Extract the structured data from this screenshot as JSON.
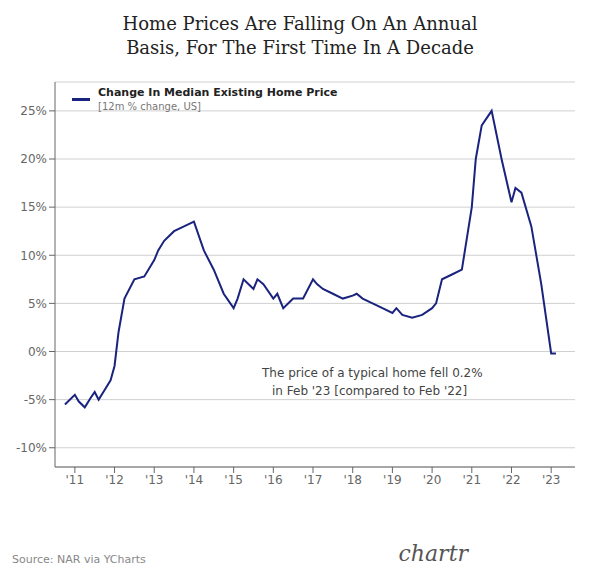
{
  "chart_data": {
    "type": "line",
    "title": "Home Prices Are Falling On An Annual\nBasis, For The First Time In A Decade",
    "subtitle": "[12m % change, US]",
    "x": [
      2010.75,
      2011.0,
      2011.1,
      2011.25,
      2011.4,
      2011.5,
      2011.6,
      2011.75,
      2011.9,
      2012.0,
      2012.1,
      2012.25,
      2012.5,
      2012.75,
      2013.0,
      2013.1,
      2013.25,
      2013.5,
      2013.75,
      2014.0,
      2014.25,
      2014.5,
      2014.75,
      2015.0,
      2015.1,
      2015.25,
      2015.5,
      2015.6,
      2015.75,
      2016.0,
      2016.1,
      2016.25,
      2016.5,
      2016.75,
      2017.0,
      2017.1,
      2017.25,
      2017.5,
      2017.75,
      2018.0,
      2018.1,
      2018.25,
      2018.5,
      2018.75,
      2019.0,
      2019.1,
      2019.25,
      2019.5,
      2019.75,
      2020.0,
      2020.1,
      2020.25,
      2020.5,
      2020.75,
      2021.0,
      2021.1,
      2021.25,
      2021.5,
      2021.75,
      2022.0,
      2022.1,
      2022.25,
      2022.5,
      2022.75,
      2023.0,
      2023.12
    ],
    "series": [
      {
        "name": "Change In Median Existing Home Price",
        "color": "#1a237e",
        "values": [
          -5.5,
          -4.5,
          -5.2,
          -5.8,
          -4.8,
          -4.2,
          -5.0,
          -4.0,
          -3.0,
          -1.5,
          2.0,
          5.5,
          7.5,
          7.8,
          9.5,
          10.5,
          11.5,
          12.5,
          13.0,
          13.5,
          10.5,
          8.5,
          6.0,
          4.5,
          5.5,
          7.5,
          6.5,
          7.5,
          7.0,
          5.5,
          6.0,
          4.5,
          5.5,
          5.5,
          7.5,
          7.0,
          6.5,
          6.0,
          5.5,
          5.8,
          6.0,
          5.5,
          5.0,
          4.5,
          4.0,
          4.5,
          3.8,
          3.5,
          3.8,
          4.5,
          5.0,
          7.5,
          8.0,
          8.5,
          15.0,
          20.0,
          23.5,
          25.0,
          20.0,
          15.5,
          17.0,
          16.5,
          13.0,
          7.0,
          -0.2,
          -0.2
        ]
      }
    ],
    "xlim": [
      2010.5,
      2023.6
    ],
    "xticks": [
      {
        "value": 2011,
        "label": "'11"
      },
      {
        "value": 2012,
        "label": "'12"
      },
      {
        "value": 2013,
        "label": "'13"
      },
      {
        "value": 2014,
        "label": "'14"
      },
      {
        "value": 2015,
        "label": "'15"
      },
      {
        "value": 2016,
        "label": "'16"
      },
      {
        "value": 2017,
        "label": "'17"
      },
      {
        "value": 2018,
        "label": "'18"
      },
      {
        "value": 2019,
        "label": "'19"
      },
      {
        "value": 2020,
        "label": "'20"
      },
      {
        "value": 2021,
        "label": "'21"
      },
      {
        "value": 2022,
        "label": "'22"
      },
      {
        "value": 2023,
        "label": "'23"
      }
    ],
    "ylim": [
      -12,
      28
    ],
    "yticks": [
      {
        "value": -10,
        "label": "-10%"
      },
      {
        "value": -5,
        "label": "-5%"
      },
      {
        "value": 0,
        "label": "0%"
      },
      {
        "value": 5,
        "label": "5%"
      },
      {
        "value": 10,
        "label": "10%"
      },
      {
        "value": 15,
        "label": "15%"
      },
      {
        "value": 20,
        "label": "20%"
      },
      {
        "value": 25,
        "label": "25%"
      }
    ],
    "grid": true,
    "legend": "upper left",
    "annotations": [
      "The price of a typical home fell 0.2%",
      "in Feb '23 [compared to Feb '22]",
      "Source: NAR via YCharts",
      "chartr"
    ]
  }
}
